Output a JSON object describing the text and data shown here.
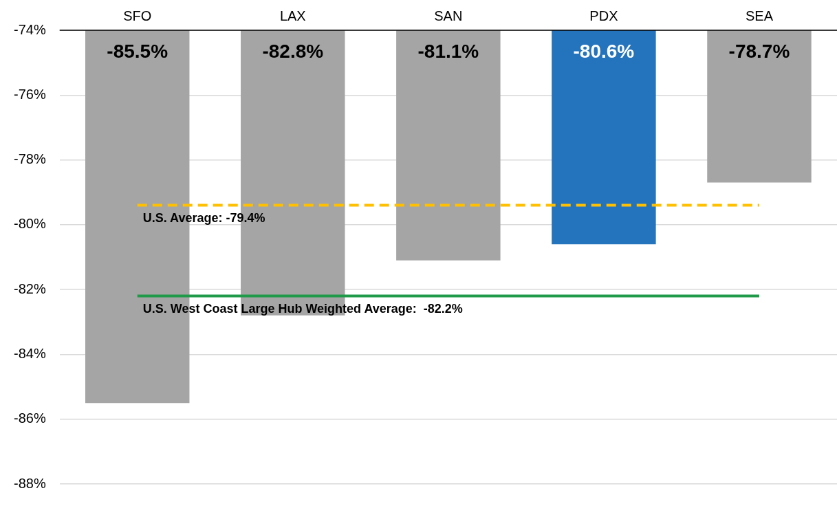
{
  "chart_data": {
    "type": "bar",
    "categories": [
      "SFO",
      "LAX",
      "SAN",
      "PDX",
      "SEA"
    ],
    "values": [
      -85.5,
      -82.8,
      -81.1,
      -80.6,
      -78.7
    ],
    "colors": [
      "#a5a5a5",
      "#a5a5a5",
      "#a5a5a5",
      "#2473bd",
      "#a5a5a5"
    ],
    "value_labels": [
      "-85.5%",
      "-82.8%",
      "-81.1%",
      "-80.6%",
      "-78.7%"
    ],
    "ylim": [
      -88,
      -74
    ],
    "yticks": [
      {
        "value": -88,
        "label": "-88%"
      },
      {
        "value": -86,
        "label": "-86%"
      },
      {
        "value": -84,
        "label": "-84%"
      },
      {
        "value": -82,
        "label": "-82%"
      },
      {
        "value": -80,
        "label": "-80%"
      },
      {
        "value": -78,
        "label": "-78%"
      },
      {
        "value": -76,
        "label": "-76%"
      },
      {
        "value": -74,
        "label": "-74%"
      }
    ],
    "grid": "y",
    "legend": false,
    "ref_lines": [
      {
        "axis": "y",
        "value": -79.4,
        "label": "U.S. Average: -79.4%",
        "color": "#ffc000",
        "line_style": "dashed"
      },
      {
        "axis": "y",
        "value": -82.2,
        "label": "U.S. West Coast Large Hub Weighted Average:  -82.2%",
        "color": "#1e9a48",
        "line_style": "solid"
      }
    ]
  }
}
